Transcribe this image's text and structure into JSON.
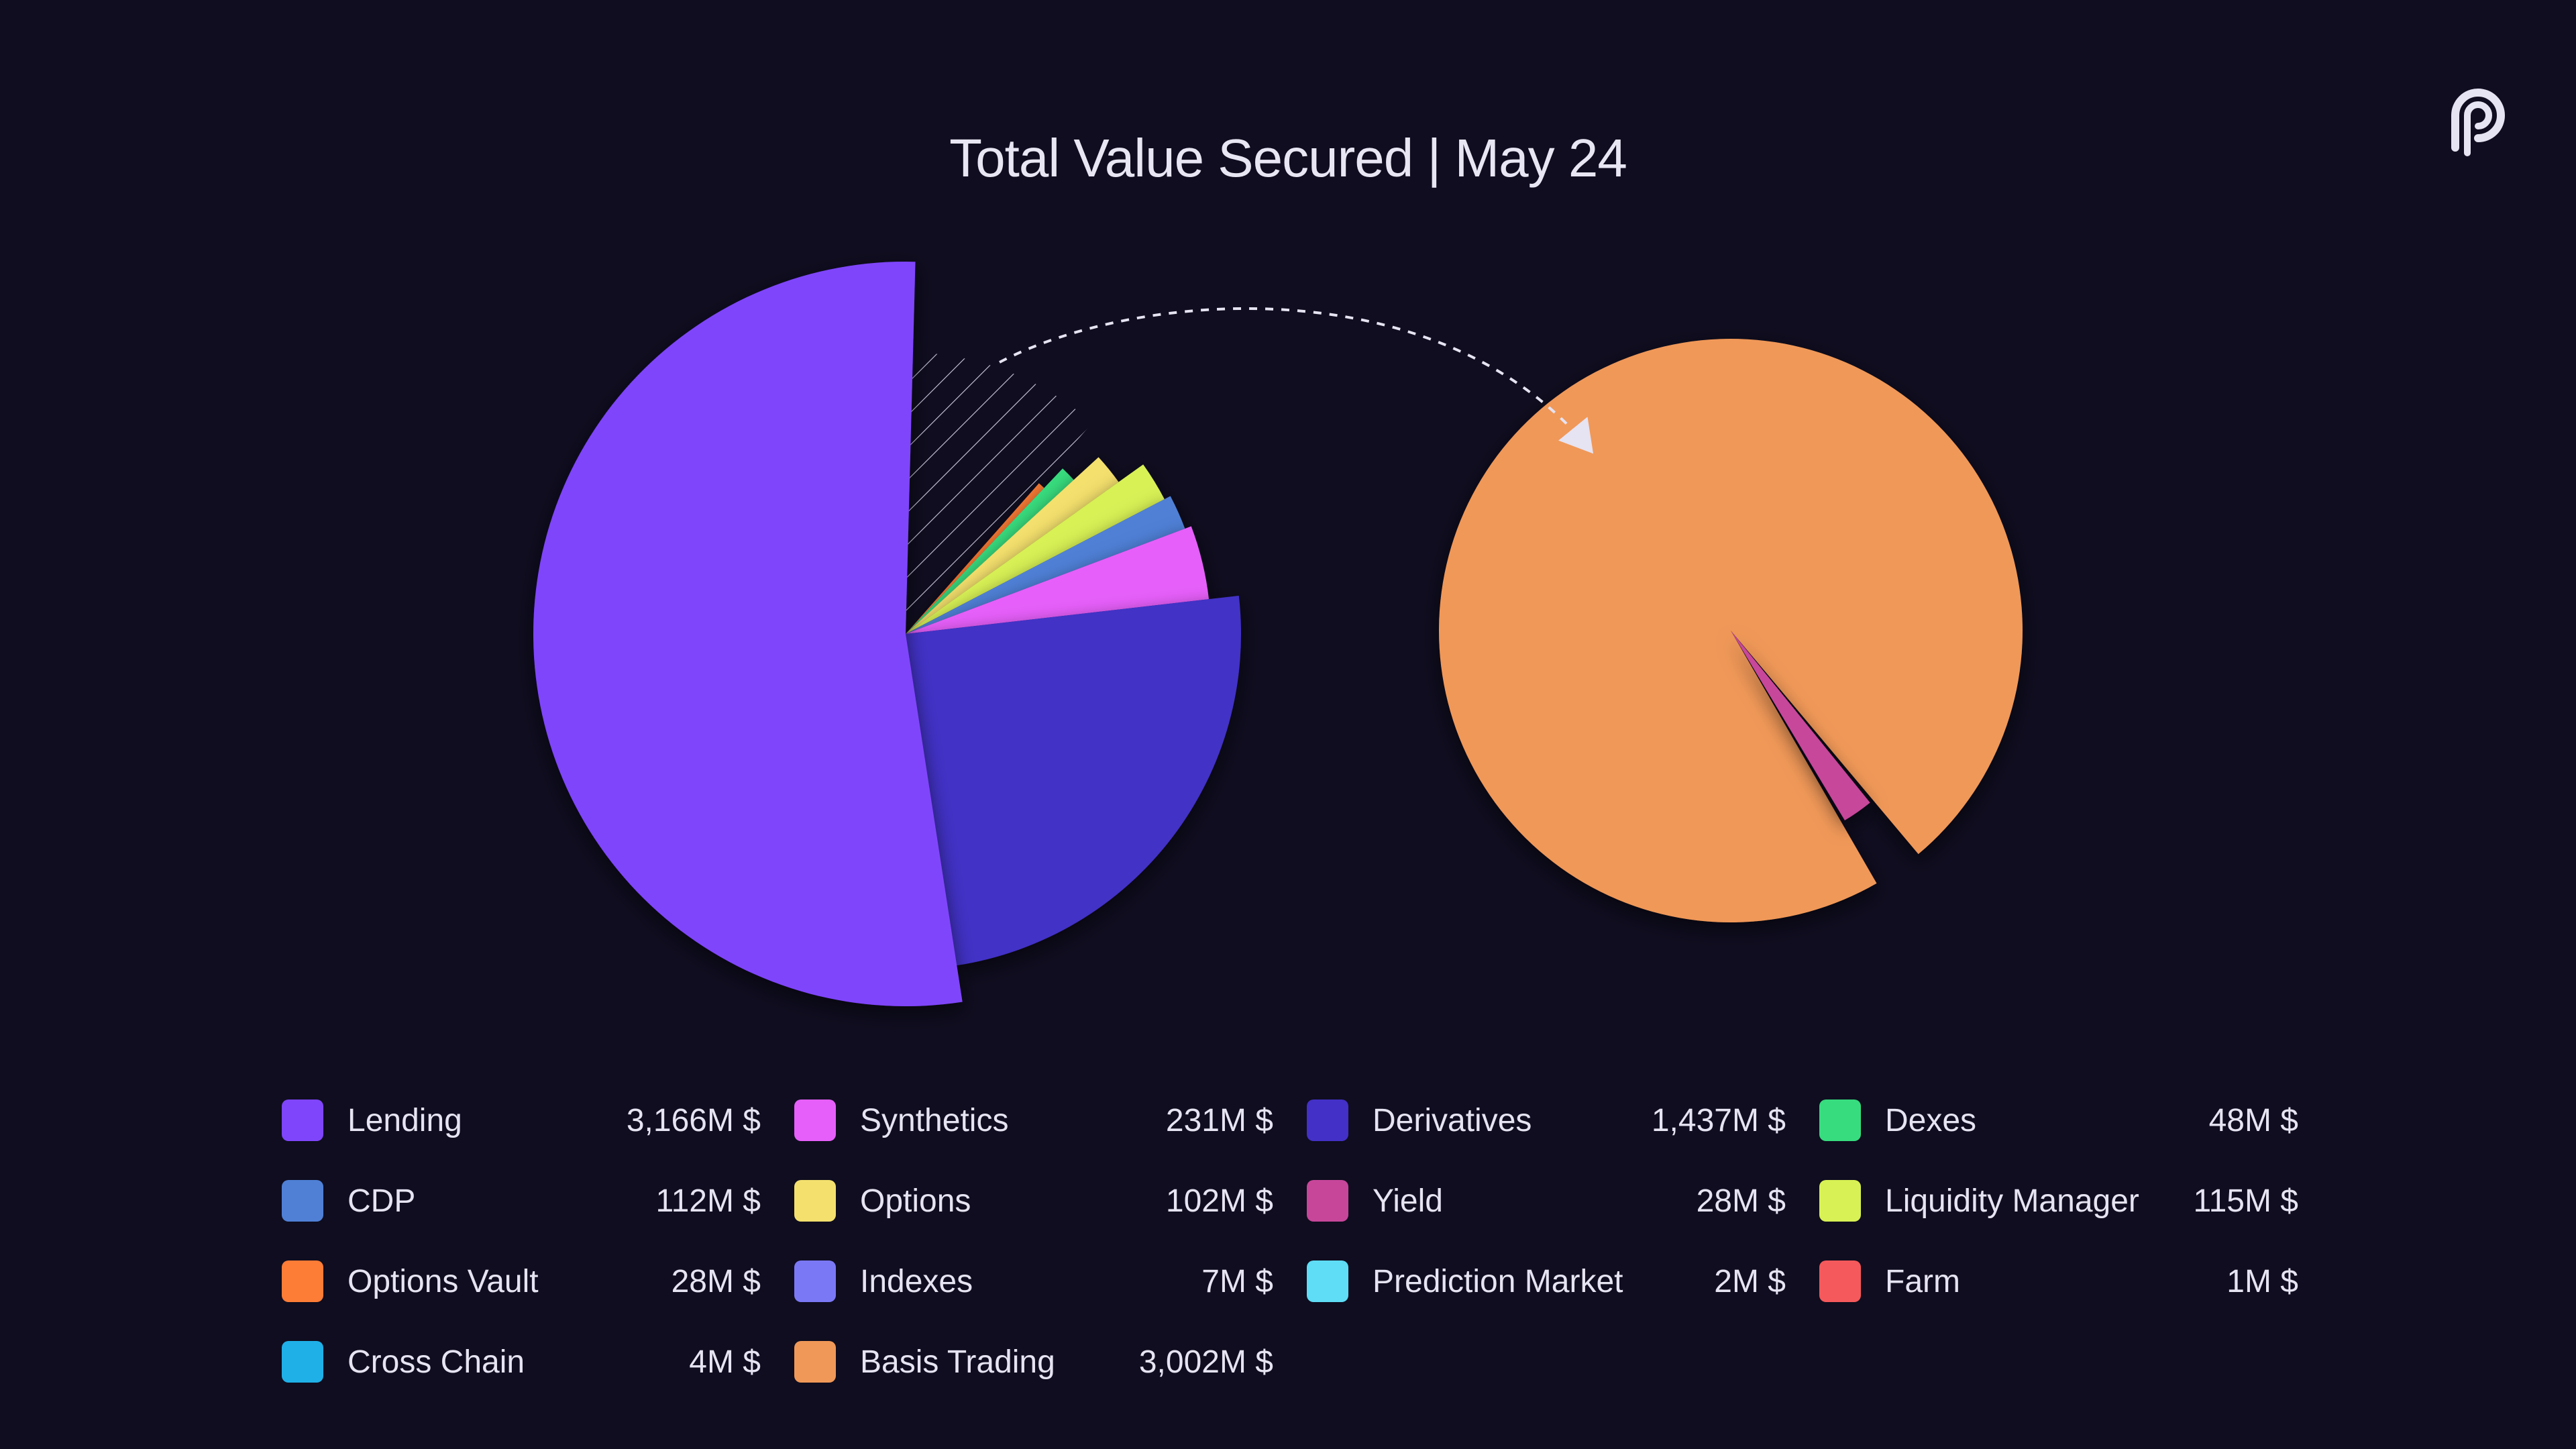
{
  "title": "Total Value Secured | May 24",
  "logo": {
    "icon": "pyth-logo-icon"
  },
  "colors": {
    "background": "#0f0d1f",
    "text": "#e6e3f2"
  },
  "chart_data": [
    {
      "type": "pie",
      "style": "exploded-segments",
      "legend_position": "bottom",
      "slices": [
        {
          "name": "Lending",
          "value": 3166,
          "color": "#7f45fb"
        },
        {
          "name": "Derivatives",
          "value": 1437,
          "color": "#4330c6"
        },
        {
          "name": "Synthetics",
          "value": 231,
          "color": "#e65ffa"
        },
        {
          "name": "CDP",
          "value": 112,
          "color": "#4f80d6"
        },
        {
          "name": "Liquidity Manager",
          "value": 115,
          "color": "#d8f154"
        },
        {
          "name": "Options",
          "value": 102,
          "color": "#f4e06d"
        },
        {
          "name": "Dexes",
          "value": 48,
          "color": "#37dc7e"
        },
        {
          "name": "Options Vault",
          "value": 28,
          "color": "#fd7c36"
        },
        {
          "name": "Basis Trading",
          "value": 3002,
          "color": "#f09858",
          "breakout": true
        }
      ]
    },
    {
      "type": "pie",
      "breakout_of": "Basis Trading",
      "slices": [
        {
          "name": "Basis Trading",
          "value": 3002,
          "color": "#f09858"
        },
        {
          "name": "Yield",
          "value": 28,
          "color": "#c7469a"
        }
      ]
    }
  ],
  "legend": [
    {
      "label": "Lending",
      "value": "3,166M $",
      "color": "#7f45fb"
    },
    {
      "label": "Synthetics",
      "value": "231M $",
      "color": "#e65ffa"
    },
    {
      "label": "Derivatives",
      "value": "1,437M $",
      "color": "#4330c6"
    },
    {
      "label": "Dexes",
      "value": "48M $",
      "color": "#37dc7e"
    },
    {
      "label": "CDP",
      "value": "112M $",
      "color": "#4f80d6"
    },
    {
      "label": "Options",
      "value": "102M $",
      "color": "#f4e06d"
    },
    {
      "label": "Yield",
      "value": "28M $",
      "color": "#c7469a"
    },
    {
      "label": "Liquidity Manager",
      "value": "115M $",
      "color": "#d8f154"
    },
    {
      "label": "Options Vault",
      "value": "28M $",
      "color": "#fd7c36"
    },
    {
      "label": "Indexes",
      "value": "7M $",
      "color": "#7b78f6"
    },
    {
      "label": "Prediction Market",
      "value": "2M $",
      "color": "#5fdcf6"
    },
    {
      "label": "Farm",
      "value": "1M $",
      "color": "#f5595b"
    },
    {
      "label": "Cross Chain",
      "value": "4M $",
      "color": "#1fb0e8"
    },
    {
      "label": "Basis Trading",
      "value": "3,002M $",
      "color": "#f09858"
    }
  ]
}
